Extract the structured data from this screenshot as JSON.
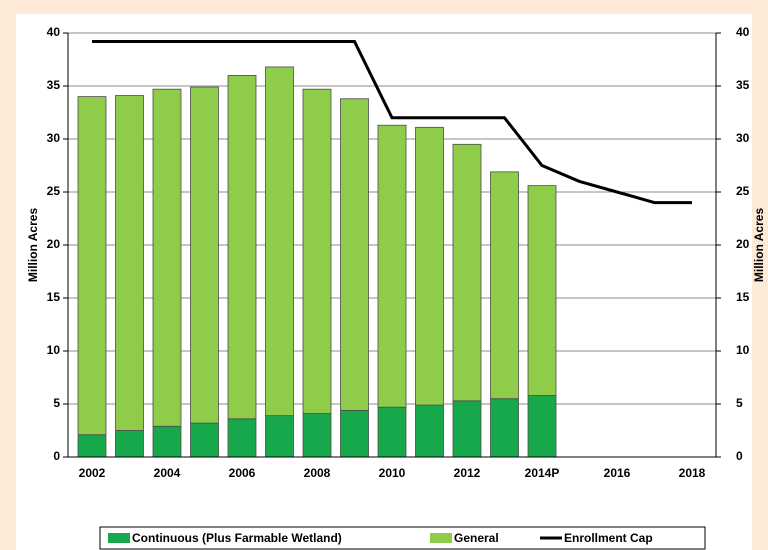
{
  "chart_data": {
    "type": "bar",
    "stacked": true,
    "categories": [
      "2002",
      null,
      "2004",
      null,
      "2006",
      null,
      "2008",
      null,
      "2010",
      null,
      "2012",
      null,
      "2014P",
      null,
      "2016",
      null,
      "2018"
    ],
    "series": [
      {
        "name": "Continuous (Plus Farmable Wetland)",
        "color": "#16a84a",
        "values": [
          2.1,
          2.5,
          2.9,
          3.2,
          3.6,
          3.9,
          4.1,
          4.4,
          4.7,
          4.9,
          5.3,
          5.5,
          5.8,
          null,
          null,
          null,
          null
        ]
      },
      {
        "name": "General",
        "color": "#8fcc4a",
        "values": [
          31.9,
          31.6,
          31.8,
          31.7,
          32.4,
          32.9,
          30.6,
          29.4,
          26.6,
          26.2,
          24.2,
          21.4,
          19.8,
          null,
          null,
          null,
          null
        ]
      },
      {
        "name": "Enrollment Cap",
        "type": "line",
        "color": "#000000",
        "values": [
          39.2,
          39.2,
          39.2,
          39.2,
          39.2,
          39.2,
          39.2,
          39.2,
          32,
          32,
          32,
          32,
          27.5,
          26,
          25,
          24,
          24
        ]
      }
    ],
    "ylabel": "Million Acres",
    "y2label": "Million Acres",
    "ylim": [
      0,
      40
    ],
    "yticks": [
      0,
      5,
      10,
      15,
      20,
      25,
      30,
      35,
      40
    ],
    "y2lim": [
      0,
      40
    ],
    "y2ticks": [
      0,
      5,
      10,
      15,
      20,
      25,
      30,
      35,
      40
    ],
    "grid": true,
    "legend": "bottom"
  }
}
